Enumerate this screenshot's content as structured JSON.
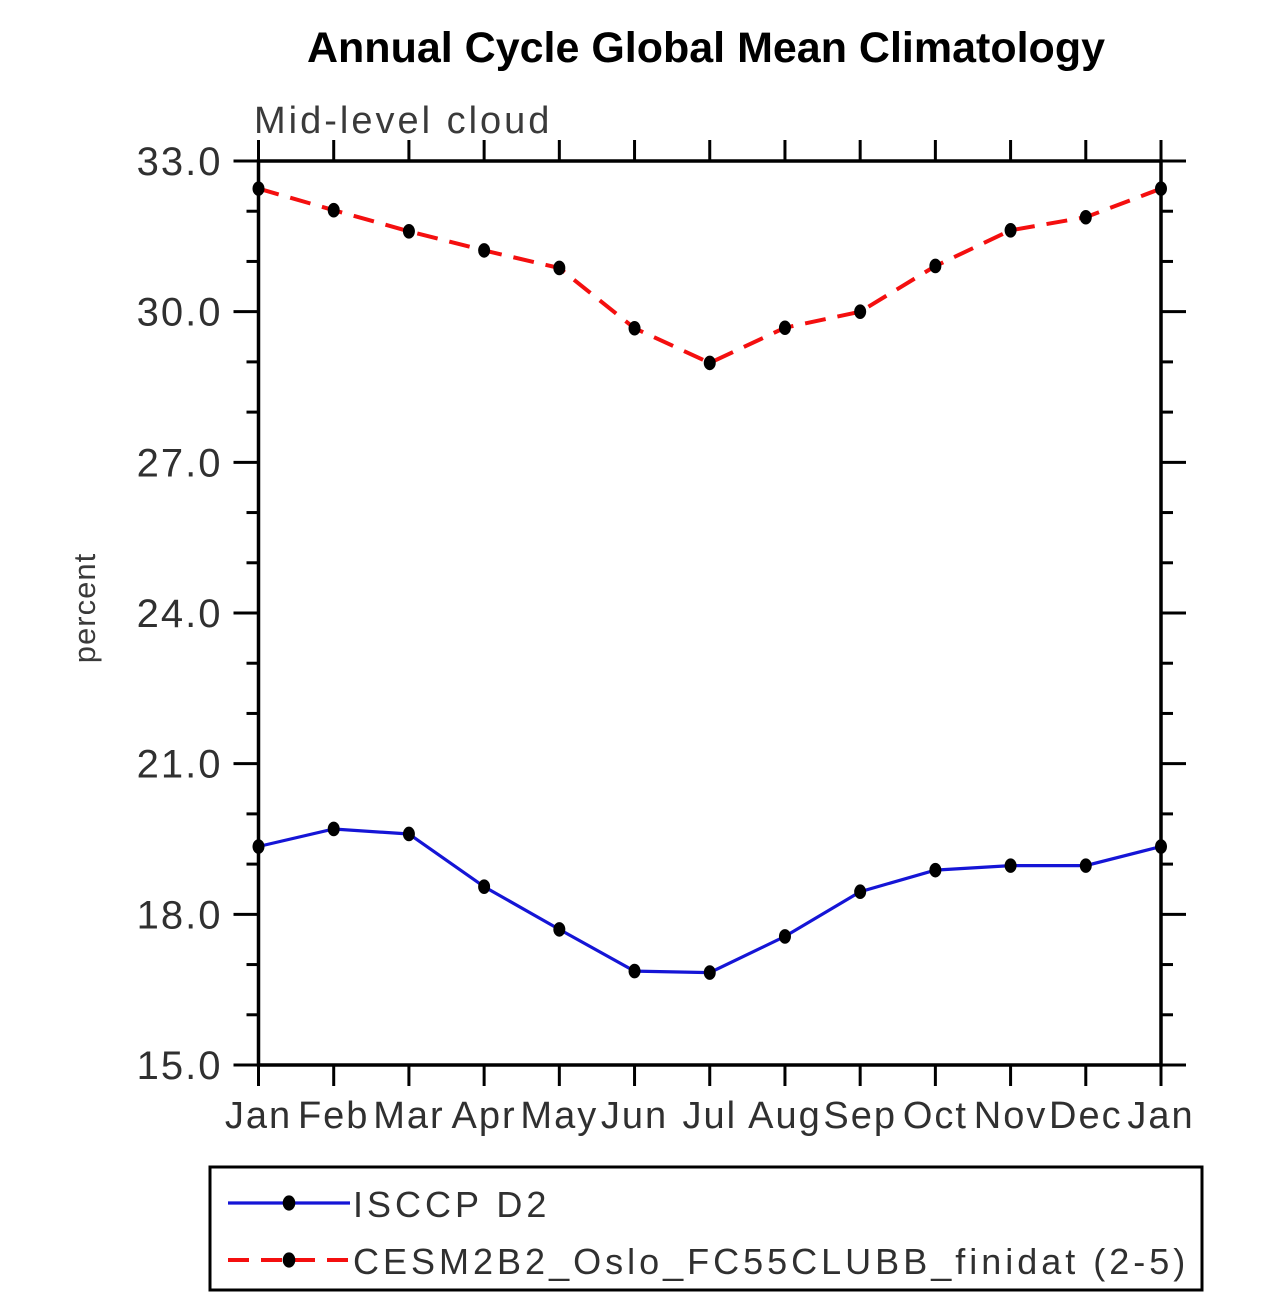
{
  "title": "Annual Cycle Global Mean Climatology",
  "subtitle": "Mid-level cloud",
  "y_axis": {
    "label": "percent",
    "tick_labels": [
      "15.0",
      "18.0",
      "21.0",
      "24.0",
      "27.0",
      "30.0",
      "33.0"
    ]
  },
  "x_axis": {
    "tick_labels": [
      "Jan",
      "Feb",
      "Mar",
      "Apr",
      "May",
      "Jun",
      "Jul",
      "Aug",
      "Sep",
      "Oct",
      "Nov",
      "Dec",
      "Jan"
    ]
  },
  "colors": {
    "series1": "#1515d6",
    "series2": "#f40f0f",
    "marker": "#000000",
    "axis": "#000000"
  },
  "chart_data": {
    "type": "line",
    "title": "Annual Cycle Global Mean Climatology",
    "subtitle": "Mid-level cloud",
    "xlabel": "",
    "ylabel": "percent",
    "ylim": [
      15.0,
      33.0
    ],
    "yticks_major": [
      15.0,
      18.0,
      21.0,
      24.0,
      27.0,
      30.0,
      33.0
    ],
    "ytick_minor_step": 1.0,
    "grid": false,
    "legend_position": "bottom",
    "categories": [
      "Jan",
      "Feb",
      "Mar",
      "Apr",
      "May",
      "Jun",
      "Jul",
      "Aug",
      "Sep",
      "Oct",
      "Nov",
      "Dec",
      "Jan"
    ],
    "series": [
      {
        "name": "ISCCP D2",
        "color": "#1515d6",
        "style": "solid",
        "marker": "filled-circle",
        "marker_color": "#000000",
        "values": [
          19.35,
          19.7,
          19.6,
          18.55,
          17.7,
          16.87,
          16.84,
          17.56,
          18.45,
          18.88,
          18.97,
          18.97,
          19.35
        ]
      },
      {
        "name": "CESM2B2_Oslo_FC55CLUBB_finidat (2-5)",
        "color": "#f40f0f",
        "style": "dashed",
        "marker": "filled-circle",
        "marker_color": "#000000",
        "values": [
          32.45,
          32.02,
          31.6,
          31.22,
          30.87,
          29.67,
          28.98,
          29.68,
          30.0,
          30.91,
          31.62,
          31.88,
          32.45
        ]
      }
    ]
  }
}
